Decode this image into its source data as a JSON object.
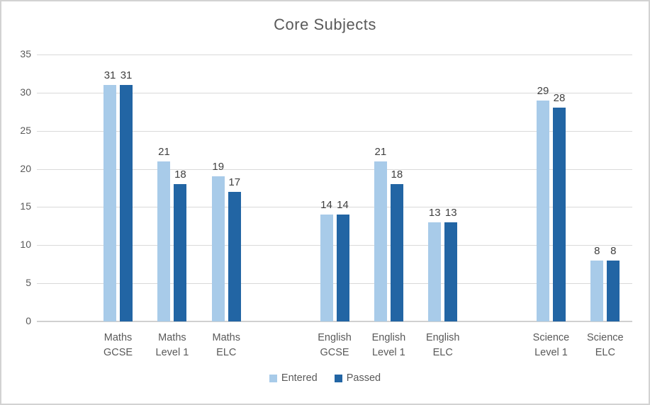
{
  "chart_data": {
    "type": "bar",
    "title": "Core Subjects",
    "categories": [
      "Maths GCSE",
      "Maths Level 1",
      "Maths ELC",
      "English GCSE",
      "English Level 1",
      "English ELC",
      "Science Level 1",
      "Science ELC"
    ],
    "category_labels": [
      [
        "Maths",
        "GCSE"
      ],
      [
        "Maths",
        "Level 1"
      ],
      [
        "Maths",
        "ELC"
      ],
      [
        "English",
        "GCSE"
      ],
      [
        "English",
        "Level 1"
      ],
      [
        "English",
        "ELC"
      ],
      [
        "Science",
        "Level 1"
      ],
      [
        "Science",
        "ELC"
      ]
    ],
    "series": [
      {
        "name": "Entered",
        "color": "#A8CBE9",
        "values": [
          31,
          21,
          19,
          14,
          21,
          13,
          29,
          8
        ]
      },
      {
        "name": "Passed",
        "color": "#2265A4",
        "values": [
          31,
          18,
          17,
          14,
          18,
          13,
          28,
          8
        ]
      }
    ],
    "xlabel": "",
    "ylabel": "",
    "ylim": [
      0,
      35
    ],
    "yticks": [
      0,
      5,
      10,
      15,
      20,
      25,
      30,
      35
    ],
    "grid": true,
    "legend_position": "bottom",
    "data_labels": true,
    "category_slots": [
      1,
      2,
      3,
      5,
      6,
      7,
      9,
      10
    ],
    "slot_count": 11
  },
  "colors": {
    "title_text": "#595959",
    "axis_text": "#595959",
    "data_label_text": "#404040",
    "gridline": "#D9D9D9",
    "baseline": "#D0D0D0",
    "border": "#D2D2D2",
    "entered_series": "#A8CBE9",
    "passed_series": "#2265A4"
  }
}
